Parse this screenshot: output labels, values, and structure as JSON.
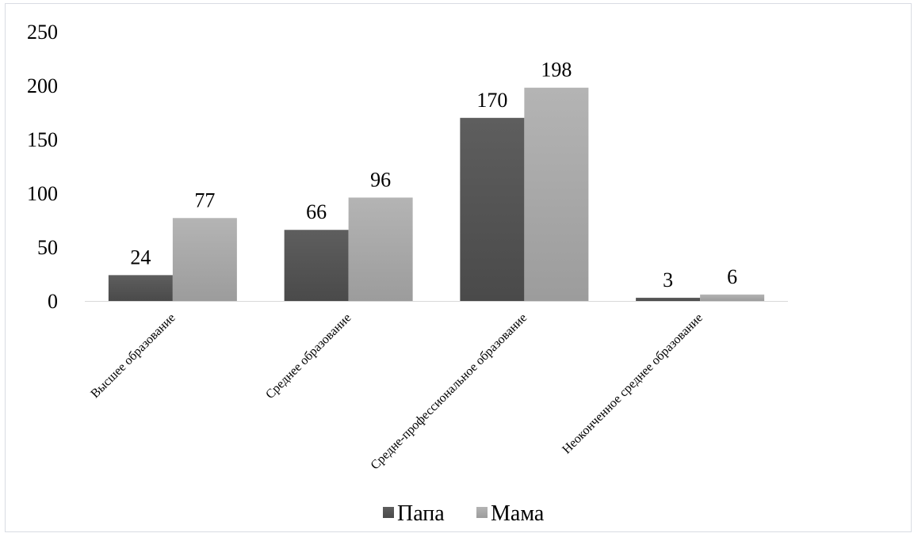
{
  "chart_data": {
    "type": "bar",
    "categories": [
      "Высшее образование",
      "Среднее образование",
      "Средне-профессиональное образование",
      "Неоконченное среднее образование"
    ],
    "series": [
      {
        "name": "Папа",
        "values": [
          24,
          66,
          170,
          3
        ],
        "color": "#555555"
      },
      {
        "name": "Мама",
        "values": [
          77,
          96,
          198,
          6
        ],
        "color": "#a9a9a9"
      }
    ],
    "y_ticks": [
      "0",
      "50",
      "100",
      "150",
      "200",
      "250"
    ],
    "ylim": [
      0,
      250
    ],
    "grid": false,
    "legend_position": "bottom",
    "data_labels": true
  }
}
